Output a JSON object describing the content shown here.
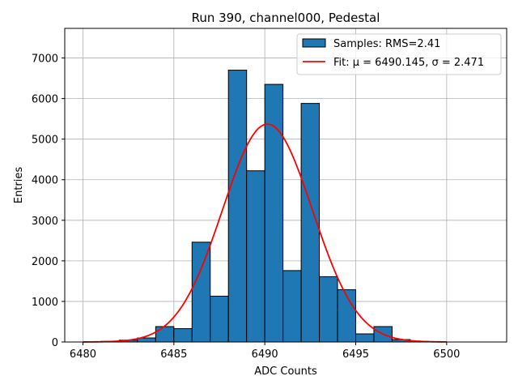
{
  "chart_data": {
    "type": "bar",
    "title": "Run 390, channel000, Pedestal",
    "xlabel": "ADC Counts",
    "ylabel": "Entries",
    "xlim": [
      6479,
      6503.3
    ],
    "ylim": [
      0,
      7730
    ],
    "xticks": [
      6480,
      6485,
      6490,
      6495,
      6500
    ],
    "yticks": [
      0,
      1000,
      2000,
      3000,
      4000,
      5000,
      6000,
      7000
    ],
    "grid": true,
    "legend_position": "top-right",
    "histogram": {
      "name": "Samples: RMS=2.41",
      "color": "#1f77b4",
      "edge_color": "#000000",
      "bins": [
        {
          "start": 6481.0,
          "end": 6482.0,
          "count": 15
        },
        {
          "start": 6482.0,
          "end": 6483.0,
          "count": 45
        },
        {
          "start": 6483.0,
          "end": 6484.0,
          "count": 100
        },
        {
          "start": 6484.0,
          "end": 6485.0,
          "count": 380
        },
        {
          "start": 6485.0,
          "end": 6486.0,
          "count": 330
        },
        {
          "start": 6486.0,
          "end": 6487.0,
          "count": 2460
        },
        {
          "start": 6487.0,
          "end": 6488.0,
          "count": 1130
        },
        {
          "start": 6488.0,
          "end": 6489.0,
          "count": 6700
        },
        {
          "start": 6489.0,
          "end": 6490.0,
          "count": 4220
        },
        {
          "start": 6490.0,
          "end": 6491.0,
          "count": 6350
        },
        {
          "start": 6491.0,
          "end": 6492.0,
          "count": 1760
        },
        {
          "start": 6492.0,
          "end": 6493.0,
          "count": 5880
        },
        {
          "start": 6493.0,
          "end": 6494.0,
          "count": 1610
        },
        {
          "start": 6494.0,
          "end": 6495.0,
          "count": 1290
        },
        {
          "start": 6495.0,
          "end": 6496.0,
          "count": 200
        },
        {
          "start": 6496.0,
          "end": 6497.0,
          "count": 380
        },
        {
          "start": 6497.0,
          "end": 6498.0,
          "count": 60
        },
        {
          "start": 6498.0,
          "end": 6499.0,
          "count": 15
        }
      ]
    },
    "fit": {
      "name": "Fit: μ = 6490.145, σ = 2.471",
      "color": "#ff0000",
      "function": "gaussian",
      "mu": 6490.145,
      "sigma": 2.471,
      "amplitude": 5370,
      "x_range": [
        6480,
        6500
      ]
    }
  }
}
